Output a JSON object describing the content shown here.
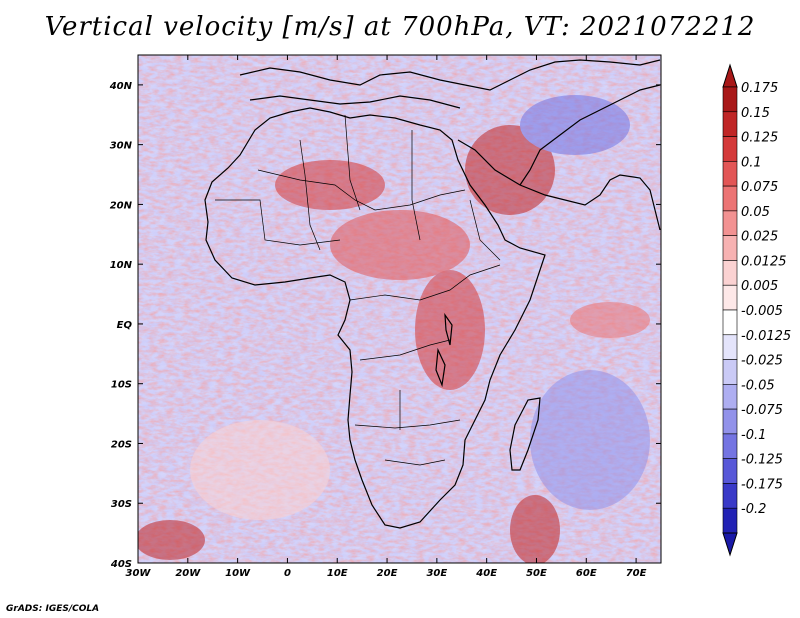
{
  "map": {
    "title": "Vertical velocity [m/s] at 700hPa, VT: 2021072212",
    "credit": "GrADS: IGES/COLA",
    "extent": {
      "lon_min": -30,
      "lon_max": 75,
      "lat_min": -40,
      "lat_max": 45
    },
    "lat_ticks": [
      {
        "lat": 40,
        "label": "40N"
      },
      {
        "lat": 30,
        "label": "30N"
      },
      {
        "lat": 20,
        "label": "20N"
      },
      {
        "lat": 10,
        "label": "10N"
      },
      {
        "lat": 0,
        "label": "EQ"
      },
      {
        "lat": -10,
        "label": "10S"
      },
      {
        "lat": -20,
        "label": "20S"
      },
      {
        "lat": -30,
        "label": "30S"
      },
      {
        "lat": -40,
        "label": "40S"
      }
    ],
    "lon_ticks": [
      {
        "lon": -30,
        "label": "30W"
      },
      {
        "lon": -20,
        "label": "20W"
      },
      {
        "lon": -10,
        "label": "10W"
      },
      {
        "lon": 0,
        "label": "0"
      },
      {
        "lon": 10,
        "label": "10E"
      },
      {
        "lon": 20,
        "label": "20E"
      },
      {
        "lon": 30,
        "label": "30E"
      },
      {
        "lon": 40,
        "label": "40E"
      },
      {
        "lon": 50,
        "label": "50E"
      },
      {
        "lon": 60,
        "label": "60E"
      },
      {
        "lon": 70,
        "label": "70E"
      }
    ]
  },
  "colorbar": {
    "levels": [
      {
        "label": "0.175",
        "color": "#a81818"
      },
      {
        "label": "0.15",
        "color": "#c02626"
      },
      {
        "label": "0.125",
        "color": "#d43a3a"
      },
      {
        "label": "0.1",
        "color": "#e25656"
      },
      {
        "label": "0.075",
        "color": "#ec7474"
      },
      {
        "label": "0.05",
        "color": "#f29292"
      },
      {
        "label": "0.025",
        "color": "#f7b2b2"
      },
      {
        "label": "0.0125",
        "color": "#fbd2d2"
      },
      {
        "label": "0.005",
        "color": "#fde8e8"
      },
      {
        "label": "-0.005",
        "color": "#ffffff"
      },
      {
        "label": "-0.0125",
        "color": "#e4e4fb"
      },
      {
        "label": "-0.025",
        "color": "#cacaf6"
      },
      {
        "label": "-0.05",
        "color": "#aeaef1"
      },
      {
        "label": "-0.075",
        "color": "#9292ea"
      },
      {
        "label": "-0.1",
        "color": "#7474e2"
      },
      {
        "label": "-0.125",
        "color": "#5858d8"
      },
      {
        "label": "-0.175",
        "color": "#3a3ac8"
      },
      {
        "label": "-0.2",
        "color": "#2222b4"
      }
    ],
    "top_cap_color": "#a81818",
    "bottom_cap_color": "#1a1aa8"
  }
}
